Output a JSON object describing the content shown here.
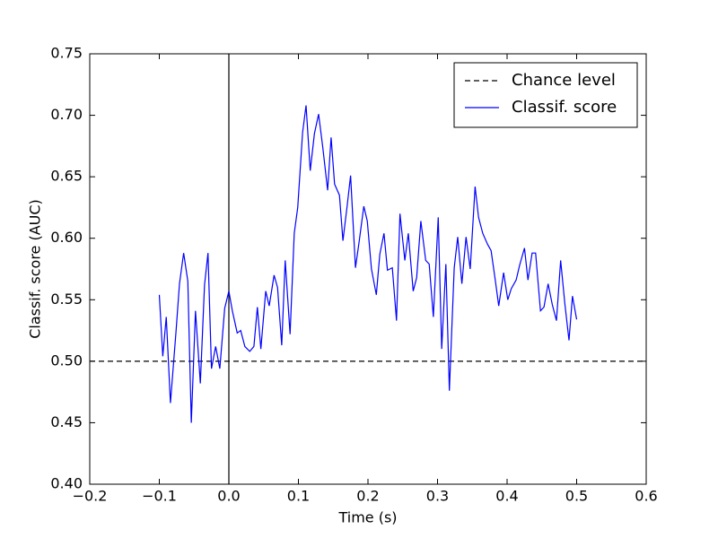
{
  "chart_data": {
    "type": "line",
    "xlabel": "Time (s)",
    "ylabel": "Classif. score (AUC)",
    "xlim": [
      -0.2,
      0.6
    ],
    "ylim": [
      0.4,
      0.75
    ],
    "xticks": [
      {
        "value": -0.2,
        "label": "−0.2"
      },
      {
        "value": -0.1,
        "label": "−0.1"
      },
      {
        "value": 0,
        "label": "0.0"
      },
      0.1,
      0.2,
      0.3,
      0.4,
      0.5,
      0.6
    ],
    "yticks": [
      {
        "value": 0.4,
        "label": "0.40"
      },
      0.45,
      {
        "value": 0.5,
        "label": "0.50"
      },
      0.55,
      {
        "value": 0.6,
        "label": "0.60"
      },
      0.65,
      {
        "value": 0.7,
        "label": "0.70"
      },
      0.75
    ],
    "vline": 0,
    "legend": "upper right",
    "series": [
      {
        "name": "Chance level",
        "color": "#000000",
        "dashed": true,
        "x": [
          -0.2,
          0.6
        ],
        "values": [
          0.5,
          0.5
        ]
      },
      {
        "name": "Classif. score",
        "color": "#0000ff",
        "dashed": false,
        "x": [
          -0.1,
          -0.095,
          -0.09,
          -0.084,
          -0.076,
          -0.071,
          -0.065,
          -0.059,
          -0.054,
          -0.048,
          -0.041,
          -0.035,
          -0.03,
          -0.025,
          -0.019,
          -0.013,
          -0.006,
          0.0,
          0.005,
          0.012,
          0.017,
          0.023,
          0.03,
          0.036,
          0.041,
          0.046,
          0.053,
          0.058,
          0.065,
          0.07,
          0.076,
          0.081,
          0.088,
          0.094,
          0.099,
          0.106,
          0.111,
          0.117,
          0.123,
          0.129,
          0.135,
          0.142,
          0.147,
          0.152,
          0.159,
          0.164,
          0.17,
          0.175,
          0.182,
          0.187,
          0.194,
          0.199,
          0.205,
          0.212,
          0.217,
          0.223,
          0.228,
          0.235,
          0.241,
          0.246,
          0.253,
          0.258,
          0.265,
          0.27,
          0.276,
          0.283,
          0.288,
          0.294,
          0.301,
          0.306,
          0.312,
          0.317,
          0.324,
          0.329,
          0.335,
          0.341,
          0.347,
          0.354,
          0.359,
          0.365,
          0.372,
          0.377,
          0.383,
          0.388,
          0.395,
          0.401,
          0.406,
          0.413,
          0.418,
          0.425,
          0.43,
          0.436,
          0.441,
          0.448,
          0.453,
          0.459,
          0.465,
          0.471,
          0.477,
          0.483,
          0.489,
          0.494,
          0.5
        ],
        "values": [
          0.554,
          0.504,
          0.536,
          0.466,
          0.524,
          0.563,
          0.588,
          0.565,
          0.45,
          0.541,
          0.482,
          0.562,
          0.588,
          0.494,
          0.512,
          0.494,
          0.543,
          0.557,
          0.541,
          0.523,
          0.525,
          0.512,
          0.508,
          0.512,
          0.544,
          0.51,
          0.557,
          0.545,
          0.57,
          0.56,
          0.513,
          0.582,
          0.522,
          0.604,
          0.625,
          0.686,
          0.708,
          0.655,
          0.685,
          0.701,
          0.674,
          0.639,
          0.682,
          0.644,
          0.635,
          0.598,
          0.626,
          0.651,
          0.576,
          0.596,
          0.626,
          0.614,
          0.575,
          0.554,
          0.587,
          0.604,
          0.574,
          0.576,
          0.533,
          0.62,
          0.582,
          0.604,
          0.557,
          0.568,
          0.614,
          0.582,
          0.579,
          0.536,
          0.617,
          0.51,
          0.579,
          0.476,
          0.576,
          0.601,
          0.563,
          0.601,
          0.575,
          0.642,
          0.617,
          0.604,
          0.595,
          0.59,
          0.566,
          0.545,
          0.572,
          0.55,
          0.559,
          0.566,
          0.578,
          0.592,
          0.566,
          0.588,
          0.588,
          0.541,
          0.544,
          0.563,
          0.546,
          0.533,
          0.582,
          0.547,
          0.517,
          0.553,
          0.534
        ]
      }
    ]
  }
}
